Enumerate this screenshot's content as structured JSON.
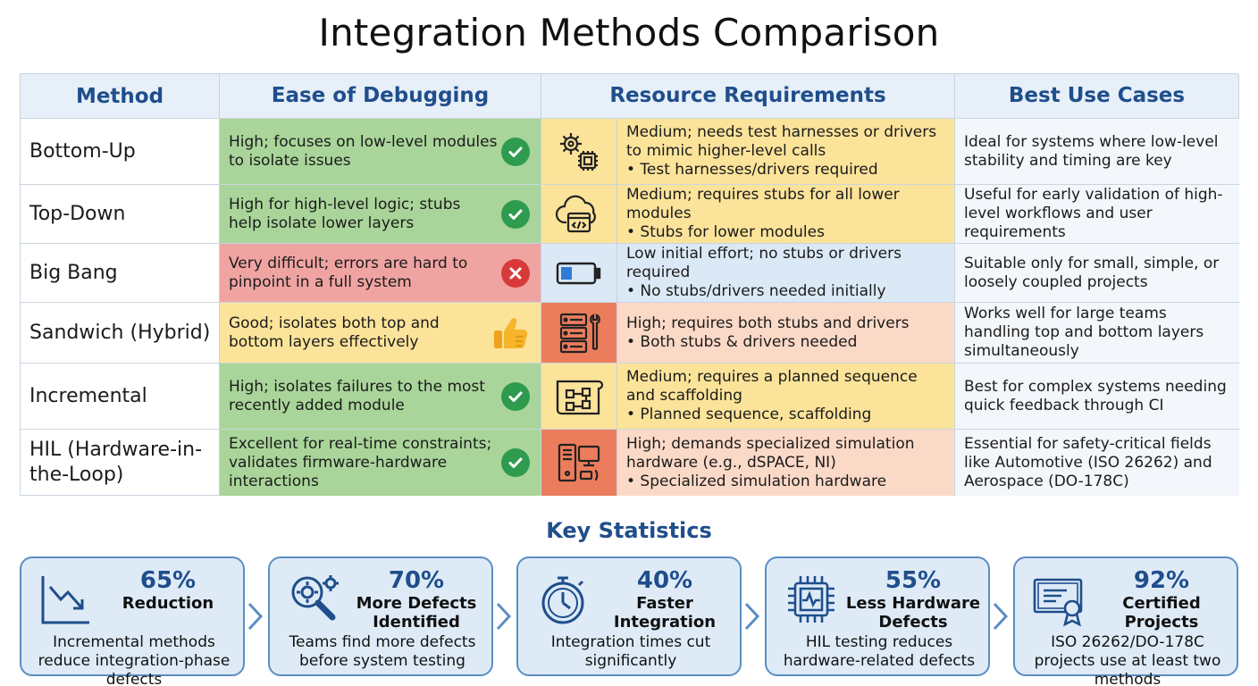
{
  "title": "Integration Methods Comparison",
  "columns": [
    "Method",
    "Ease of Debugging",
    "Resource Requirements",
    "Best Use Cases"
  ],
  "rows": [
    {
      "method": "Bottom-Up",
      "ease": "High; focuses on low-level modules to isolate issues",
      "ease_status": "check",
      "resource_icon": "gear-chip-icon",
      "resource": "Medium; needs test harnesses or drivers to mimic higher-level calls",
      "resource_bullet": "• Test harnesses/drivers required",
      "use": "Ideal for systems where low-level stability and timing are key"
    },
    {
      "method": "Top-Down",
      "ease": "High for high-level logic; stubs help isolate lower layers",
      "ease_status": "check",
      "resource_icon": "cloud-code-icon",
      "resource": "Medium; requires stubs for all lower modules",
      "resource_bullet": "• Stubs for lower modules",
      "use": "Useful for early validation of high-level workflows and user requirements"
    },
    {
      "method": "Big Bang",
      "ease": "Very difficult; errors are hard to pinpoint in a full system",
      "ease_status": "cross",
      "resource_icon": "battery-low-icon",
      "resource": "Low initial effort; no stubs or drivers required",
      "resource_bullet": "• No stubs/drivers needed initially",
      "use": "Suitable only for small, simple, or loosely coupled projects"
    },
    {
      "method": "Sandwich (Hybrid)",
      "ease": "Good; isolates both top and bottom layers effectively",
      "ease_status": "thumbs-up",
      "resource_icon": "server-wrench-icon",
      "resource": "High; requires both stubs and drivers",
      "resource_bullet": "• Both stubs & drivers needed",
      "use": "Works well for large teams handling top and bottom layers simultaneously"
    },
    {
      "method": "Incremental",
      "ease": "High; isolates failures to the most recently added module",
      "ease_status": "check",
      "resource_icon": "blueprint-icon",
      "resource": "Medium; requires a planned sequence and scaffolding",
      "resource_bullet": "• Planned sequence, scaffolding",
      "use": "Best for complex systems needing quick feedback through CI"
    },
    {
      "method": "HIL (Hardware-in-the-Loop)",
      "ease": "Excellent for real-time constraints; validates firmware-hardware interactions",
      "ease_status": "check",
      "resource_icon": "computer-tower-icon",
      "resource": "High; demands specialized simulation hardware (e.g., dSPACE, NI)",
      "resource_bullet": "• Specialized simulation hardware",
      "use": "Essential for safety-critical fields like Automotive (ISO 26262) and Aerospace (DO-178C)"
    }
  ],
  "colors": {
    "green": "#a9d59a",
    "red": "#efa4a2",
    "yellow": "#fbe39a",
    "orange_light": "#fbd9c7",
    "orange": "#f0a57f",
    "orange_dark": "#ec7d5c",
    "blue_light": "#dbe9f6",
    "accent": "#1f4e8c"
  },
  "stats_title": "Key Statistics",
  "stats": [
    {
      "icon": "trending-down-chart-icon",
      "pct": "65%",
      "label": "Reduction",
      "desc": "Incremental methods reduce integration-phase defects"
    },
    {
      "icon": "magnifier-gear-icon",
      "pct": "70%",
      "label": "More Defects Identified",
      "desc": "Teams find more defects before system testing"
    },
    {
      "icon": "stopwatch-icon",
      "pct": "40%",
      "label": "Faster Integration",
      "desc": "Integration times cut significantly"
    },
    {
      "icon": "chip-pulse-icon",
      "pct": "55%",
      "label": "Less Hardware Defects",
      "desc": "HIL testing reduces hardware-related defects"
    },
    {
      "icon": "certificate-icon",
      "pct": "92%",
      "label": "Certified Projects",
      "desc": "ISO 26262/DO-178C projects use at least two methods"
    }
  ]
}
